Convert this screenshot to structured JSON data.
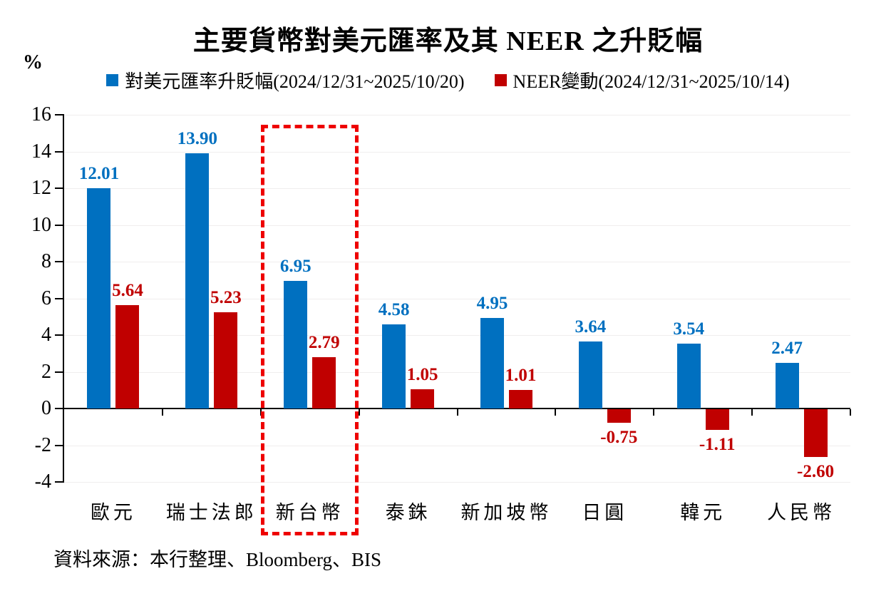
{
  "chart_data": {
    "type": "bar",
    "title": "主要貨幣對美元匯率及其 NEER 之升貶幅",
    "ylabel": "%",
    "xlabel": "",
    "categories": [
      "歐元",
      "瑞士法郎",
      "新台幣",
      "泰銖",
      "新加坡幣",
      "日圓",
      "韓元",
      "人民幣"
    ],
    "series": [
      {
        "name": "對美元匯率升貶幅(2024/12/31~2025/10/20)",
        "color": "#0070c0",
        "values": [
          12.01,
          13.9,
          6.95,
          4.58,
          4.95,
          3.64,
          3.54,
          2.47
        ]
      },
      {
        "name": "NEER變動(2024/12/31~2025/10/14)",
        "color": "#c00000",
        "values": [
          5.64,
          5.23,
          2.79,
          1.05,
          1.01,
          -0.75,
          -1.11,
          -2.6
        ]
      }
    ],
    "ylim": [
      -4,
      16
    ],
    "ytick_step": 2,
    "grid": true,
    "legend_position": "top",
    "highlight": {
      "category": "新台幣",
      "category_index": 2,
      "color": "#ee0000"
    },
    "source": "資料來源：本行整理、Bloomberg、BIS"
  }
}
